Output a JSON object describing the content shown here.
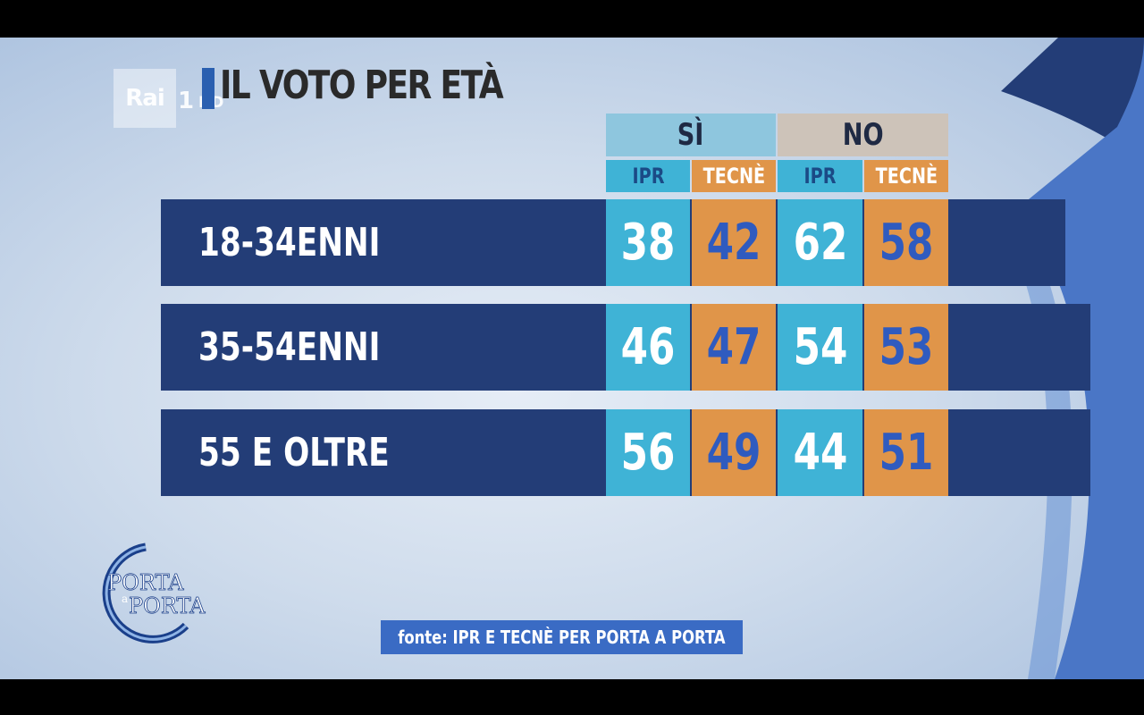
{
  "brand": {
    "rai_text": "Rai",
    "channel_num": "1",
    "hd": "HD"
  },
  "chart_data": {
    "type": "table",
    "title": "IL VOTO PER ETÀ",
    "groups": [
      "SÌ",
      "NO"
    ],
    "subheaders": [
      "IPR",
      "TECNÈ",
      "IPR",
      "TECNÈ"
    ],
    "rows": [
      {
        "label": "18-34ENNI",
        "values": [
          38,
          42,
          62,
          58
        ]
      },
      {
        "label": "35-54ENNI",
        "values": [
          46,
          47,
          54,
          53
        ]
      },
      {
        "label": "55 E OLTRE",
        "values": [
          56,
          49,
          44,
          51
        ]
      }
    ]
  },
  "show_logo": {
    "line1": "PORTA",
    "line2": "a",
    "line3": "PORTA"
  },
  "source": "fonte: IPR E TECNÈ PER PORTA A PORTA",
  "colors": {
    "row_band": "#233d77",
    "ipr": "#3fb3d6",
    "tecne": "#e09549",
    "si_header": "#8ec6de",
    "no_header": "#cdc3b9"
  }
}
